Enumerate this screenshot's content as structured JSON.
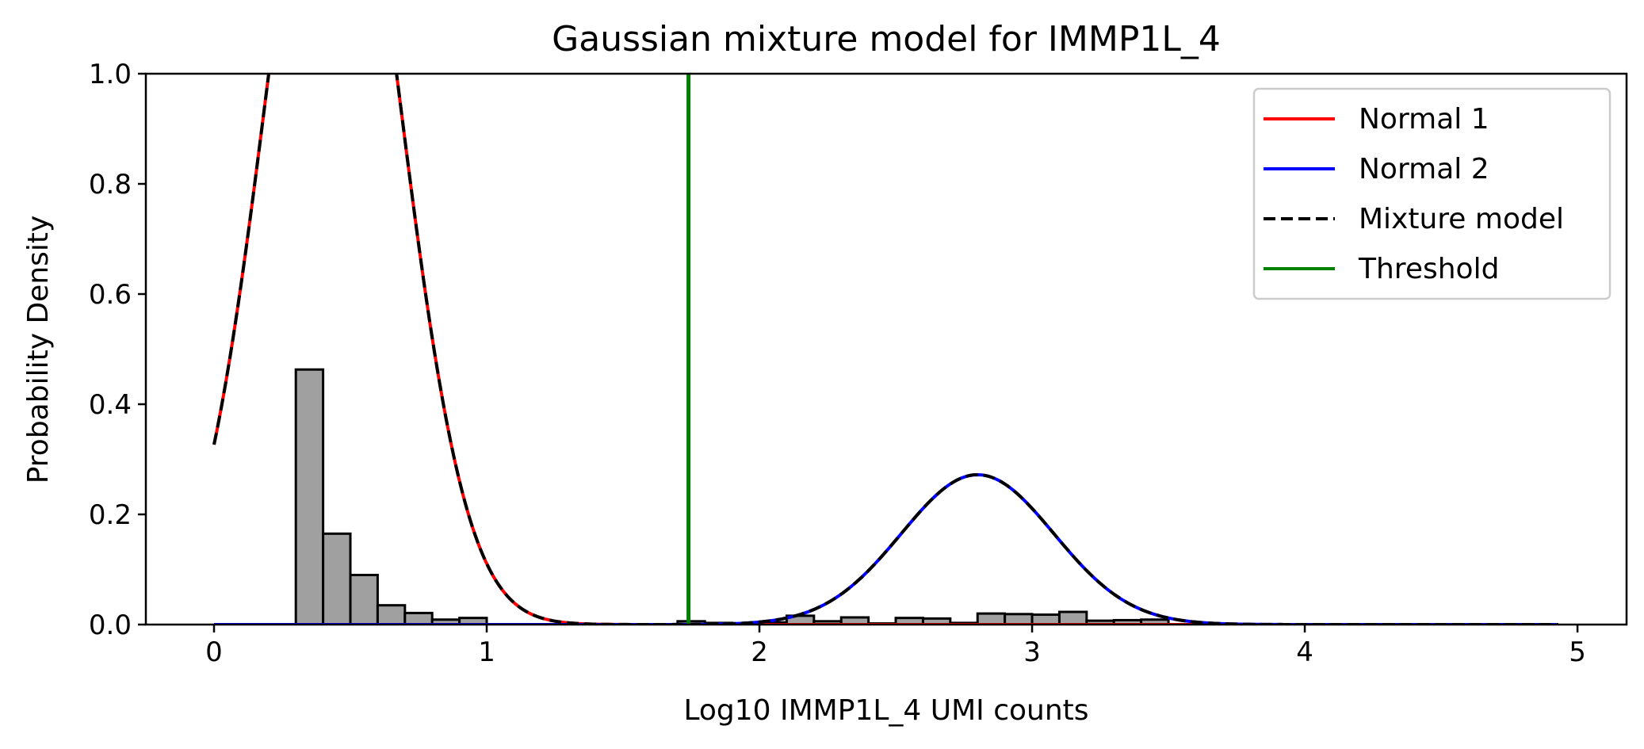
{
  "chart_data": {
    "type": "histogram+line",
    "title": "Gaussian mixture model for IMMP1L_4",
    "xlabel": "Log10 IMMP1L_4 UMI counts",
    "ylabel": "Probability Density",
    "xlim": [
      -0.25,
      5.18
    ],
    "ylim": [
      0.0,
      1.0
    ],
    "xticks": [
      "0",
      "1",
      "2",
      "3",
      "4",
      "5"
    ],
    "yticks": [
      "0.0",
      "0.2",
      "0.4",
      "0.6",
      "0.8",
      "1.0"
    ],
    "grid": false,
    "legend_position": "top-right",
    "histogram": {
      "bin_width": 0.1,
      "fill": "#a0a0a0",
      "edge": "#000000",
      "bins": [
        {
          "x0": 0.3,
          "h": 0.463
        },
        {
          "x0": 0.4,
          "h": 0.165
        },
        {
          "x0": 0.5,
          "h": 0.09
        },
        {
          "x0": 0.6,
          "h": 0.035
        },
        {
          "x0": 0.7,
          "h": 0.021
        },
        {
          "x0": 0.8,
          "h": 0.009
        },
        {
          "x0": 0.9,
          "h": 0.012
        },
        {
          "x0": 1.7,
          "h": 0.006
        },
        {
          "x0": 1.8,
          "h": 0.003
        },
        {
          "x0": 2.0,
          "h": 0.004
        },
        {
          "x0": 2.1,
          "h": 0.016
        },
        {
          "x0": 2.2,
          "h": 0.006
        },
        {
          "x0": 2.3,
          "h": 0.013
        },
        {
          "x0": 2.4,
          "h": 0.002
        },
        {
          "x0": 2.5,
          "h": 0.012
        },
        {
          "x0": 2.6,
          "h": 0.011
        },
        {
          "x0": 2.7,
          "h": 0.003
        },
        {
          "x0": 2.8,
          "h": 0.02
        },
        {
          "x0": 2.9,
          "h": 0.019
        },
        {
          "x0": 3.0,
          "h": 0.018
        },
        {
          "x0": 3.1,
          "h": 0.023
        },
        {
          "x0": 3.2,
          "h": 0.007
        },
        {
          "x0": 3.3,
          "h": 0.008
        },
        {
          "x0": 3.4,
          "h": 0.009
        }
      ]
    },
    "series": [
      {
        "name": "Normal 1",
        "color": "#ff0000",
        "style": "solid",
        "mu": 0.435,
        "sigma": 0.245,
        "amp": 1.58
      },
      {
        "name": "Normal 2",
        "color": "#0000ff",
        "style": "solid",
        "mu": 2.8,
        "sigma": 0.28,
        "amp": 0.272
      },
      {
        "name": "Mixture model",
        "color": "#000000",
        "style": "dashed"
      },
      {
        "name": "Threshold",
        "color": "#008000",
        "style": "solid",
        "x": 1.74
      }
    ],
    "curve_x_range": [
      0.0,
      4.93
    ]
  }
}
